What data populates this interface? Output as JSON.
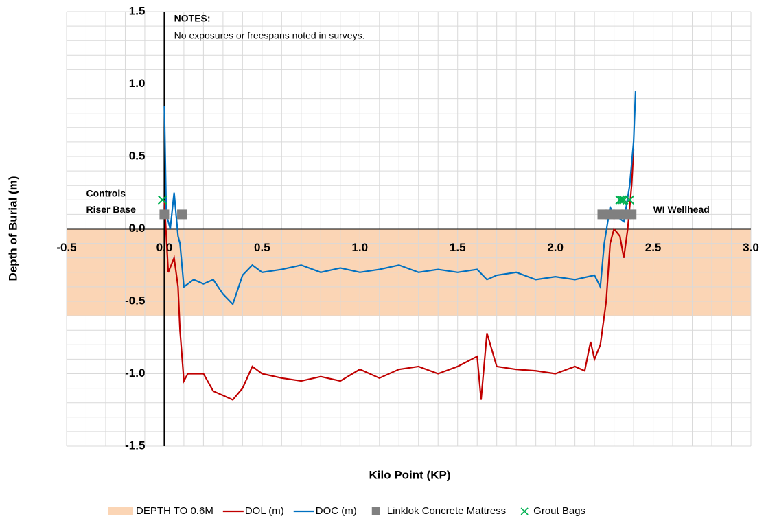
{
  "chart_data": {
    "type": "line",
    "xlabel": "Kilo Point (KP)",
    "ylabel": "Depth of Burial (m)",
    "xlim": [
      -0.5,
      3.0
    ],
    "ylim": [
      -1.5,
      1.5
    ],
    "xticks": [
      -0.5,
      {
        "value": 0,
        "label": "0.0"
      },
      0.5,
      {
        "value": 1,
        "label": "1.0"
      },
      1.5,
      {
        "value": 2,
        "label": "2.0"
      },
      2.5,
      {
        "value": 3,
        "label": "3.0"
      }
    ],
    "yticks": [
      {
        "value": -1.5,
        "label": "-1.5"
      },
      {
        "value": -1,
        "label": "-1.0"
      },
      -0.5,
      {
        "value": 0,
        "label": "0.0"
      },
      0.5,
      {
        "value": 1,
        "label": "1.0"
      },
      1.5
    ],
    "xminorticks": [
      -0.4,
      -0.3,
      -0.2,
      -0.1,
      0.1,
      0.2,
      0.3,
      0.4,
      0.6,
      0.7,
      0.8,
      0.9,
      1.1,
      1.2,
      1.3,
      1.4,
      1.6,
      1.7,
      1.8,
      1.9,
      2.1,
      2.2,
      2.3,
      2.4,
      2.6,
      2.7,
      2.8,
      2.9
    ],
    "yminorticks": [
      -1.4,
      -1.3,
      -1.2,
      -1.1,
      -0.9,
      -0.8,
      -0.7,
      -0.6,
      -0.4,
      -0.3,
      -0.2,
      -0.1,
      0.1,
      0.2,
      0.3,
      0.4,
      0.6,
      0.7,
      0.8,
      0.9,
      1.1,
      1.2,
      1.3,
      1.4
    ],
    "grid": true,
    "negative_tick_color": "#ff0000",
    "band": {
      "name": "DEPTH TO 0.6M",
      "color": "#fbd5b5",
      "values": [
        0,
        -0.6
      ]
    },
    "series": [
      {
        "name": "DOL (m)",
        "type": "line",
        "color": "#c00000",
        "x": [
          0,
          0.02,
          0.05,
          0.07,
          0.08,
          0.1,
          0.12,
          0.2,
          0.25,
          0.3,
          0.35,
          0.4,
          0.45,
          0.5,
          0.6,
          0.7,
          0.8,
          0.9,
          1.0,
          1.1,
          1.2,
          1.3,
          1.4,
          1.5,
          1.6,
          1.62,
          1.65,
          1.7,
          1.8,
          1.9,
          2.0,
          2.1,
          2.15,
          2.18,
          2.2,
          2.23,
          2.26,
          2.28,
          2.3,
          2.33,
          2.35,
          2.37,
          2.39,
          2.4
        ],
        "values": [
          0.2,
          -0.3,
          -0.2,
          -0.4,
          -0.7,
          -1.05,
          -1.0,
          -1.0,
          -1.12,
          -1.15,
          -1.18,
          -1.1,
          -0.95,
          -1.0,
          -1.03,
          -1.05,
          -1.02,
          -1.05,
          -0.97,
          -1.03,
          -0.97,
          -0.95,
          -1.0,
          -0.95,
          -0.88,
          -1.18,
          -0.72,
          -0.95,
          -0.97,
          -0.98,
          -1.0,
          -0.95,
          -0.98,
          -0.78,
          -0.9,
          -0.8,
          -0.5,
          -0.1,
          0.0,
          -0.05,
          -0.2,
          0.0,
          0.3,
          0.55
        ]
      },
      {
        "name": "DOC (m)",
        "type": "line",
        "color": "#0070c0",
        "x": [
          0,
          0.01,
          0.03,
          0.05,
          0.07,
          0.08,
          0.1,
          0.15,
          0.2,
          0.25,
          0.3,
          0.35,
          0.4,
          0.45,
          0.5,
          0.6,
          0.7,
          0.8,
          0.9,
          1.0,
          1.1,
          1.2,
          1.3,
          1.4,
          1.5,
          1.6,
          1.65,
          1.7,
          1.8,
          1.9,
          2.0,
          2.1,
          2.2,
          2.23,
          2.25,
          2.28,
          2.3,
          2.35,
          2.38,
          2.4,
          2.41
        ],
        "values": [
          0.85,
          0.1,
          0.0,
          0.25,
          -0.05,
          -0.1,
          -0.4,
          -0.35,
          -0.38,
          -0.35,
          -0.45,
          -0.52,
          -0.32,
          -0.25,
          -0.3,
          -0.28,
          -0.25,
          -0.3,
          -0.27,
          -0.3,
          -0.28,
          -0.25,
          -0.3,
          -0.28,
          -0.3,
          -0.28,
          -0.35,
          -0.32,
          -0.3,
          -0.35,
          -0.33,
          -0.35,
          -0.32,
          -0.4,
          -0.1,
          0.15,
          0.1,
          0.05,
          0.3,
          0.6,
          0.95
        ]
      },
      {
        "name": "Linklok Concrete Mattress",
        "type": "scatter",
        "marker": "square",
        "color": "#808080",
        "x": [
          0.0,
          0.09,
          2.24,
          2.28,
          2.32,
          2.36,
          2.39
        ],
        "values": [
          0.1,
          0.1,
          0.1,
          0.1,
          0.1,
          0.1,
          0.1
        ]
      },
      {
        "name": "Grout Bags",
        "type": "scatter",
        "marker": "x",
        "color": "#00b050",
        "x": [
          -0.01,
          2.33,
          2.34,
          2.35,
          2.38
        ],
        "values": [
          0.2,
          0.2,
          0.2,
          0.2,
          0.2
        ]
      }
    ],
    "annotations": [
      {
        "text": "NOTES:",
        "x": 0.05,
        "y": 1.45,
        "bold": true
      },
      {
        "text": "No exposures or freespans noted in surveys.",
        "x": 0.05,
        "y": 1.33,
        "bold": false
      },
      {
        "text": "Controls",
        "x": -0.4,
        "y": 0.24,
        "bold": true
      },
      {
        "text": "Riser Base",
        "x": -0.4,
        "y": 0.13,
        "bold": true
      },
      {
        "text": "WI Wellhead",
        "x": 2.5,
        "y": 0.13,
        "bold": true
      }
    ]
  }
}
